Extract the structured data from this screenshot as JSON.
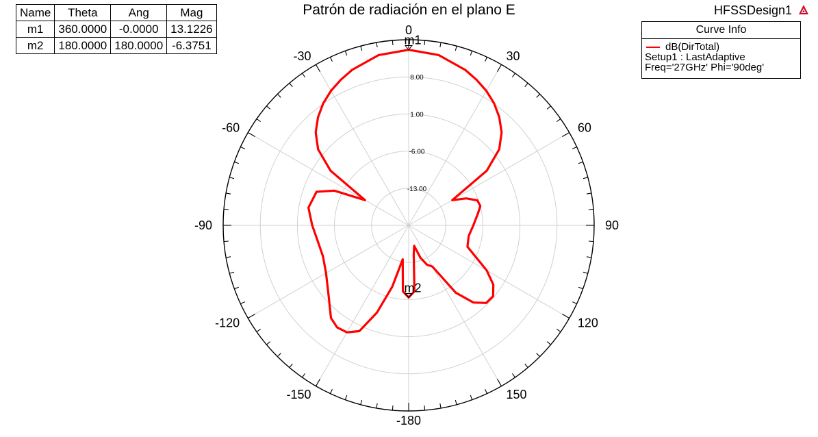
{
  "marker_table": {
    "headers": [
      "Name",
      "Theta",
      "Ang",
      "Mag"
    ],
    "rows": [
      [
        "m1",
        "360.0000",
        "-0.0000",
        "13.1226"
      ],
      [
        "m2",
        "180.0000",
        "180.0000",
        "-6.3751"
      ]
    ]
  },
  "design_name": "HFSSDesign1",
  "logo_icon": "ansys-logo-icon",
  "legend": {
    "header": "Curve Info",
    "trace_name": "dB(DirTotal)",
    "setup": "Setup1 : LastAdaptive",
    "params": "Freq='27GHz' Phi='90deg'"
  },
  "chart_data": {
    "type": "polar-line",
    "title": "Patrón de radiación en el plano E",
    "angle_labels": [
      "0",
      "30",
      "60",
      "90",
      "120",
      "150",
      "-180",
      "-150",
      "-120",
      "-90",
      "-60",
      "-30"
    ],
    "radial_ticks": [
      -13,
      -6,
      1,
      8
    ],
    "radial_tick_labels": [
      "-13.00",
      "-6.00",
      "1.00",
      "8.00"
    ],
    "rlim": [
      -20,
      15
    ],
    "grid": true,
    "series": [
      {
        "name": "dB(DirTotal)",
        "color": "#ff0000",
        "theta": [
          0,
          10,
          20,
          25,
          30,
          35,
          40,
          45,
          50,
          55,
          60,
          65,
          70,
          75,
          80,
          90,
          100,
          110,
          120,
          125,
          130,
          135,
          140,
          145,
          150,
          155,
          160,
          165,
          170,
          175,
          180,
          185,
          190,
          195,
          200,
          205,
          210,
          215,
          220,
          230,
          240,
          250,
          260,
          270,
          280,
          290,
          295,
          300,
          305,
          310,
          315,
          320,
          325,
          330,
          335,
          340,
          350,
          360
        ],
        "r": [
          13.1,
          12.6,
          11.2,
          10.3,
          9.3,
          8.1,
          6.6,
          4.8,
          2.3,
          -2.0,
          -10.5,
          -8.0,
          -6.2,
          -6.0,
          -6.7,
          -7.8,
          -8.5,
          -8.2,
          -3.0,
          -0.5,
          0.8,
          0.7,
          -1.0,
          -4.5,
          -11.0,
          -11.8,
          -13.5,
          -16.0,
          -14.5,
          -7.5,
          -6.4,
          -7.5,
          -13.5,
          -8.0,
          -2.5,
          2.0,
          3.3,
          3.5,
          2.8,
          -0.2,
          -2.0,
          -2.8,
          -2.6,
          -1.8,
          -0.8,
          -1.5,
          -4.5,
          -10.5,
          -2.0,
          2.3,
          4.8,
          6.6,
          8.1,
          9.3,
          10.3,
          11.2,
          12.6,
          13.1
        ]
      }
    ],
    "markers": [
      {
        "name": "m1",
        "theta": 360,
        "value": 13.1226
      },
      {
        "name": "m2",
        "theta": 180,
        "value": -6.3751
      }
    ]
  }
}
